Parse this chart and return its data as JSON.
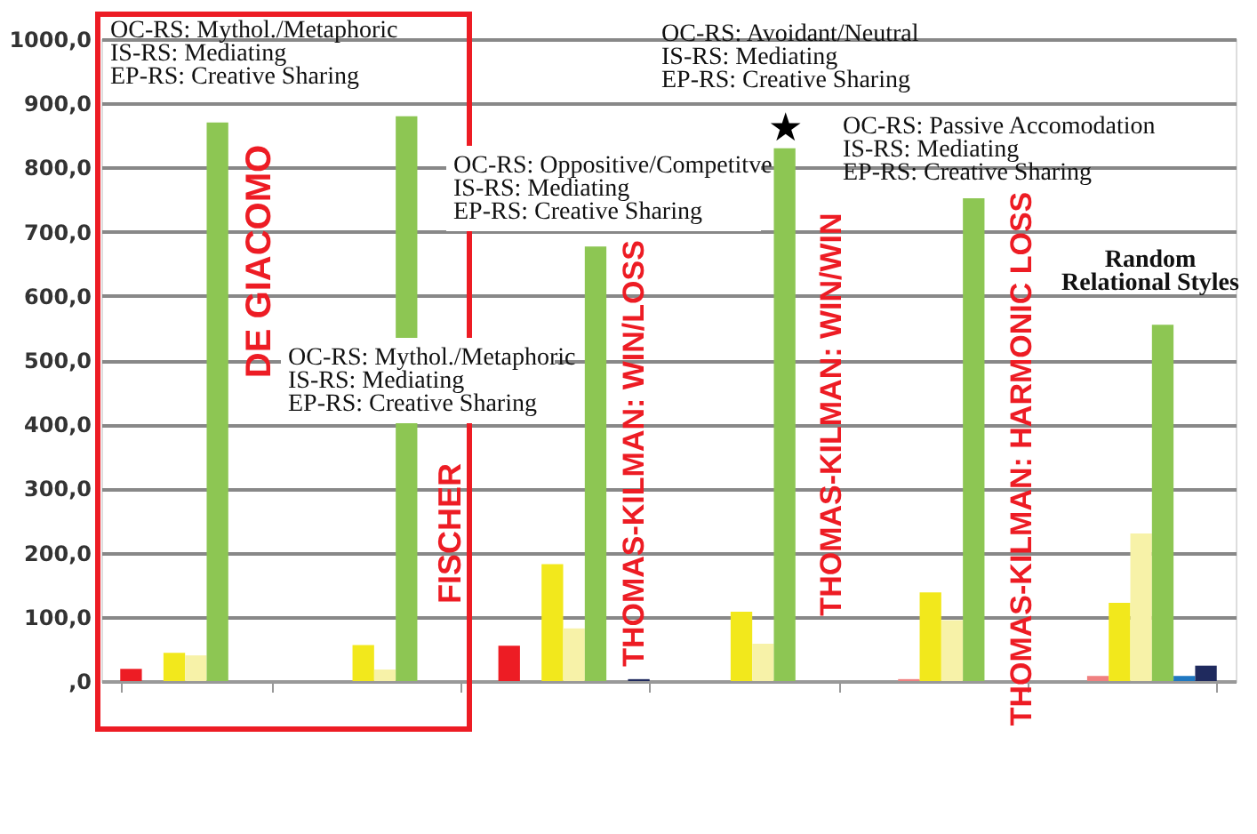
{
  "chart_data": {
    "type": "bar",
    "categories": [
      null,
      null,
      null,
      null,
      null,
      null
    ],
    "series": [
      {
        "color": "#ed1c24",
        "values": [
          19,
          0,
          55,
          0,
          0,
          0
        ]
      },
      {
        "color": "#f08080",
        "values": [
          0,
          0,
          0,
          0,
          3,
          8
        ]
      },
      {
        "color": "#f2e81c",
        "values": [
          44,
          56,
          182,
          108,
          138,
          122
        ]
      },
      {
        "color": "#f7f2a8",
        "values": [
          40,
          18,
          82,
          58,
          95,
          230
        ]
      },
      {
        "color": "#8dc653",
        "values": [
          870,
          880,
          677,
          830,
          752,
          555
        ]
      },
      {
        "color": "#1f78c1",
        "values": [
          0,
          0,
          0,
          0,
          0,
          8
        ]
      },
      {
        "color": "#1f2a5e",
        "values": [
          0,
          0,
          3,
          0,
          null,
          24
        ]
      }
    ],
    "ylim": [
      0,
      1000
    ],
    "yticks": [
      {
        "value": 0,
        "label": ",0"
      },
      {
        "value": 100,
        "label": "100,0"
      },
      {
        "value": 200,
        "label": "200,0"
      },
      {
        "value": 300,
        "label": "300,0"
      },
      {
        "value": 400,
        "label": "400,0"
      },
      {
        "value": 500,
        "label": "500,0"
      },
      {
        "value": 600,
        "label": "600,0"
      },
      {
        "value": 700,
        "label": "700,0"
      },
      {
        "value": 800,
        "label": "800,0"
      },
      {
        "value": 900,
        "label": "900,0"
      },
      {
        "value": 1000,
        "label": "1000,0"
      }
    ],
    "grid": "y",
    "annotations": [
      "OC-RS: Mythol./Metaphoric\nIS-RS:  Mediating\nEP-RS: Creative Sharing",
      "OC-RS: Mythol./Metaphoric\nIS-RS:  Mediating\nEP-RS: Creative Sharing",
      "OC-RS: Oppositive/Competitve\nIS-RS:  Mediating\nEP-RS: Creative Sharing",
      "OC-RS: Avoidant/Neutral\nIS-RS:  Mediating\nEP-RS: Creative Sharing",
      "OC-RS: Passive Accomodation\nIS-RS:  Mediating\nEP-RS: Creative Sharing",
      "Random\nRelational Styles",
      "DE GIACOMO",
      "FISCHER",
      "THOMAS-KILMAN: WIN/LOSS",
      "THOMAS-KILMAN: WIN/WIN",
      "THOMAS-KILMAN: HARMONIC LOSS",
      "★"
    ]
  }
}
